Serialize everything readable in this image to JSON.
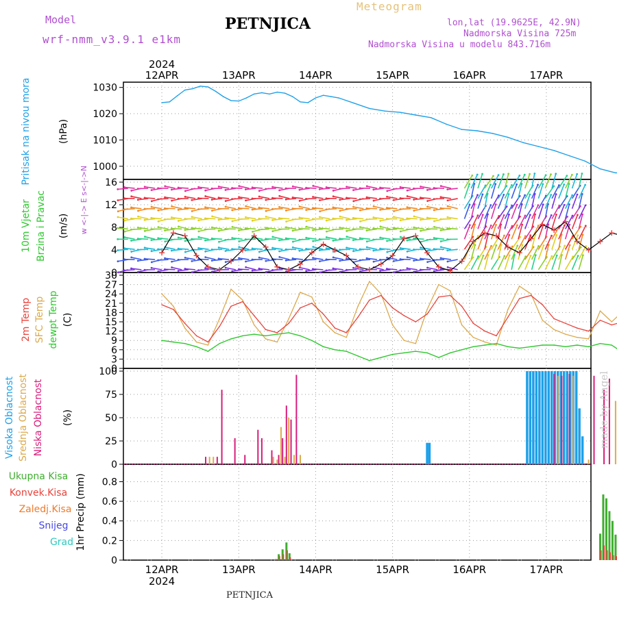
{
  "header": {
    "model_label": "Model",
    "model_name": "wrf-nmm_v3.9.1 e1km",
    "station": "PETNJICA",
    "product": "Meteogram",
    "lonlat": "lon,lat (19.9625E, 42.9N)",
    "altitude": "Nadmorska Visina 725m",
    "model_altitude": "Nadmorska Visina u modelu 843.716m"
  },
  "footer": {
    "station": "PETNJICA"
  },
  "watermark": "made by Angel",
  "colors": {
    "pressure": "#1fa0e8",
    "temp2m": "#e8423a",
    "sfc": "#dca94c",
    "dewpt": "#2ec82e",
    "high_cloud": "#1fa0e8",
    "mid_cloud": "#dca94c",
    "low_cloud": "#d81b7a",
    "precip_total": "#3fae2f",
    "precip_conv": "#e8423a",
    "precip_frozen": "#f07a2a",
    "snow": "#4848e0",
    "hail": "#2ec8c0",
    "wind_marker": "#e84040"
  },
  "chart_data": [
    {
      "id": "pressure",
      "type": "line",
      "ylabel": [
        "Pritisak na nivou mora",
        "(hPa)"
      ],
      "ylim": [
        995,
        1032
      ],
      "yticks": [
        1000,
        1010,
        1020,
        1030
      ],
      "x_days": [
        "12APR",
        "13APR",
        "14APR",
        "15APR",
        "16APR",
        "17APR"
      ],
      "year": "2024",
      "grid": true,
      "series": [
        {
          "x": [
            0,
            0.1,
            0.2,
            0.3,
            0.4,
            0.5,
            0.6,
            0.7,
            0.8,
            0.9,
            1.0,
            1.1,
            1.2,
            1.3,
            1.4,
            1.5,
            1.6,
            1.7,
            1.8,
            1.9,
            2.0,
            2.1,
            2.2,
            2.3,
            2.5,
            2.7,
            2.9,
            3.1,
            3.3,
            3.5,
            3.7,
            3.9,
            4.1,
            4.3,
            4.5,
            4.7,
            4.9,
            5.1,
            5.3,
            5.5,
            5.7,
            5.9,
            6.0
          ],
          "values": [
            1024.2,
            1024.5,
            1026.8,
            1029.0,
            1029.5,
            1030.5,
            1030.2,
            1028.5,
            1026.5,
            1025.0,
            1024.8,
            1026.0,
            1027.5,
            1028.0,
            1027.5,
            1028.2,
            1027.8,
            1026.5,
            1024.5,
            1024.2,
            1026.0,
            1027.0,
            1026.5,
            1026.0,
            1024.0,
            1022.0,
            1021.0,
            1020.5,
            1019.5,
            1018.5,
            1016.0,
            1014.0,
            1013.5,
            1012.5,
            1011.0,
            1009.0,
            1007.5,
            1006.0,
            1004.0,
            1002.0,
            999.0,
            997.5,
            997.5
          ]
        }
      ]
    },
    {
      "id": "wind",
      "type": "line",
      "ylabel": [
        "10m Vjetar",
        "Brzina i Pravac",
        "(m/s)"
      ],
      "direction_legend": "w <-|-> E  s<-|->N",
      "ylim": [
        0,
        16
      ],
      "yticks": [
        0,
        4,
        8,
        12,
        16
      ],
      "series": [
        {
          "name": "wind speed",
          "x": [
            0,
            0.15,
            0.3,
            0.45,
            0.6,
            0.75,
            0.9,
            1.05,
            1.2,
            1.35,
            1.5,
            1.65,
            1.8,
            1.95,
            2.1,
            2.25,
            2.4,
            2.55,
            2.7,
            2.85,
            3.0,
            3.15,
            3.3,
            3.45,
            3.6,
            3.75,
            3.9,
            4.05,
            4.2,
            4.35,
            4.5,
            4.65,
            4.8,
            4.95,
            5.1,
            5.25,
            5.4,
            5.55,
            5.7,
            5.85,
            6.0
          ],
          "values": [
            3.5,
            7.0,
            6.5,
            3.0,
            1.0,
            0.5,
            2.0,
            4.0,
            6.5,
            4.5,
            1.0,
            0.5,
            1.5,
            3.5,
            5.0,
            4.0,
            3.0,
            1.0,
            0.5,
            1.5,
            3.0,
            6.0,
            6.5,
            3.5,
            1.0,
            0.3,
            2.0,
            5.5,
            7.0,
            6.5,
            4.5,
            3.5,
            6.0,
            8.5,
            7.5,
            9.0,
            5.5,
            4.0,
            5.5,
            7.0,
            6.5
          ]
        }
      ]
    },
    {
      "id": "temperature",
      "type": "line",
      "ylabel": [
        "2m Temp",
        "SFC Temp",
        "dewpt Temp",
        "(C)"
      ],
      "ylim": [
        0,
        30
      ],
      "yticks": [
        0,
        3,
        6,
        9,
        12,
        15,
        18,
        21,
        24,
        27,
        30
      ],
      "series": [
        {
          "name": "2m Temp",
          "x": [
            0,
            0.15,
            0.3,
            0.45,
            0.6,
            0.75,
            0.9,
            1.05,
            1.2,
            1.35,
            1.5,
            1.65,
            1.8,
            1.95,
            2.1,
            2.25,
            2.4,
            2.55,
            2.7,
            2.85,
            3.0,
            3.15,
            3.3,
            3.45,
            3.6,
            3.75,
            3.9,
            4.05,
            4.2,
            4.35,
            4.5,
            4.65,
            4.8,
            4.95,
            5.1,
            5.25,
            5.4,
            5.55,
            5.7,
            5.85,
            6.0
          ],
          "values": [
            20.5,
            19.0,
            14.5,
            10.5,
            8.5,
            13.5,
            20.0,
            21.5,
            17.0,
            12.5,
            11.5,
            14.5,
            19.5,
            21.0,
            17.5,
            13.0,
            11.5,
            16.5,
            22.0,
            23.5,
            19.5,
            17.0,
            15.0,
            17.5,
            23.0,
            23.5,
            20.0,
            14.5,
            12.0,
            10.5,
            16.5,
            22.5,
            23.5,
            20.5,
            16.0,
            14.5,
            13.0,
            12.0,
            15.5,
            14.0,
            15.0
          ]
        },
        {
          "name": "SFC Temp",
          "x": [
            0,
            0.15,
            0.3,
            0.45,
            0.6,
            0.75,
            0.9,
            1.05,
            1.2,
            1.35,
            1.5,
            1.65,
            1.8,
            1.95,
            2.1,
            2.25,
            2.4,
            2.55,
            2.7,
            2.85,
            3.0,
            3.15,
            3.3,
            3.45,
            3.6,
            3.75,
            3.9,
            4.05,
            4.2,
            4.35,
            4.5,
            4.65,
            4.8,
            4.95,
            5.1,
            5.25,
            5.4,
            5.55,
            5.7,
            5.85,
            6.0
          ],
          "values": [
            24.0,
            20.0,
            13.0,
            8.5,
            7.5,
            16.0,
            25.5,
            22.0,
            14.0,
            9.5,
            8.5,
            16.0,
            24.5,
            23.0,
            15.0,
            11.5,
            10.0,
            20.0,
            28.0,
            24.0,
            14.0,
            9.0,
            8.0,
            19.0,
            27.0,
            25.0,
            14.0,
            10.0,
            8.5,
            7.5,
            19.0,
            26.5,
            24.0,
            15.5,
            12.5,
            11.0,
            10.0,
            9.5,
            18.5,
            15.0,
            18.5
          ]
        },
        {
          "name": "dewpt Temp",
          "x": [
            0,
            0.15,
            0.3,
            0.45,
            0.6,
            0.75,
            0.9,
            1.05,
            1.2,
            1.35,
            1.5,
            1.65,
            1.8,
            1.95,
            2.1,
            2.25,
            2.4,
            2.55,
            2.7,
            2.85,
            3.0,
            3.15,
            3.3,
            3.45,
            3.6,
            3.75,
            3.9,
            4.05,
            4.2,
            4.35,
            4.5,
            4.65,
            4.8,
            4.95,
            5.1,
            5.25,
            5.4,
            5.55,
            5.7,
            5.85,
            6.0
          ],
          "values": [
            9.0,
            8.5,
            8.0,
            7.0,
            5.5,
            8.0,
            9.5,
            10.5,
            11.0,
            10.5,
            11.0,
            11.5,
            10.5,
            9.0,
            7.0,
            6.0,
            5.5,
            4.0,
            2.5,
            3.5,
            4.5,
            5.0,
            5.5,
            5.0,
            3.5,
            5.0,
            6.0,
            7.0,
            7.5,
            8.0,
            7.0,
            6.5,
            7.0,
            7.5,
            7.5,
            7.0,
            7.5,
            7.0,
            8.0,
            7.5,
            5.0
          ]
        }
      ]
    },
    {
      "id": "clouds",
      "type": "bar",
      "ylabel": [
        "Visoka Oblacnost",
        "Srednja Oblacnost",
        "Niska Oblacnost",
        "(%)"
      ],
      "ylim": [
        0,
        100
      ],
      "yticks": [
        0,
        25,
        50,
        75,
        100
      ],
      "series": [
        {
          "name": "Visoka Oblacnost",
          "x": [
            3.45,
            3.48,
            4.75,
            4.79,
            4.83,
            4.87,
            4.91,
            4.95,
            4.99,
            5.03,
            5.07,
            5.11,
            5.15,
            5.19,
            5.23,
            5.27,
            5.31,
            5.35,
            5.39,
            5.43,
            5.47
          ],
          "values": [
            23,
            23,
            100,
            100,
            100,
            100,
            100,
            100,
            100,
            100,
            100,
            100,
            100,
            100,
            100,
            100,
            100,
            100,
            100,
            60,
            30
          ]
        },
        {
          "name": "Srednja Oblacnost",
          "x": [
            0.62,
            0.67,
            1.45,
            1.5,
            1.55,
            1.6,
            1.65,
            1.72,
            1.8,
            5.15,
            5.35,
            5.55,
            5.9
          ],
          "values": [
            8,
            8,
            8,
            5,
            40,
            8,
            50,
            10,
            10,
            95,
            95,
            5,
            68
          ]
        },
        {
          "name": "Niska Oblacnost",
          "x": [
            0.57,
            0.72,
            0.78,
            0.95,
            1.08,
            1.25,
            1.3,
            1.43,
            1.52,
            1.57,
            1.62,
            1.68,
            1.75,
            5.1,
            5.2,
            5.3,
            5.62,
            5.75,
            5.82
          ],
          "values": [
            8,
            8,
            80,
            28,
            10,
            37,
            28,
            15,
            10,
            28,
            63,
            48,
            96,
            97,
            95,
            97,
            95,
            80,
            92
          ]
        }
      ]
    },
    {
      "id": "precip",
      "type": "bar",
      "ylabel": [
        "1hr Precip (mm)"
      ],
      "legend": [
        "Ukupna Kisa",
        "Konvek.Kisa",
        "Zaledj.Kisa",
        "Snijeg",
        "Grad"
      ],
      "ylim": [
        0,
        0.95
      ],
      "yticks": [
        0,
        0.2,
        0.4,
        0.6,
        0.8
      ],
      "series": [
        {
          "name": "Ukupna Kisa",
          "x": [
            1.48,
            1.52,
            1.57,
            1.62,
            1.66,
            5.7,
            5.74,
            5.78,
            5.82,
            5.86,
            5.9
          ],
          "values": [
            0.01,
            0.06,
            0.11,
            0.18,
            0.07,
            0.27,
            0.67,
            0.63,
            0.5,
            0.4,
            0.26
          ]
        },
        {
          "name": "Konvek.Kisa",
          "x": [
            1.49,
            1.53,
            1.58,
            1.63,
            1.67,
            5.71,
            5.75,
            5.79,
            5.83,
            5.87,
            5.91
          ],
          "values": [
            0.01,
            0.04,
            0.06,
            0.1,
            0.03,
            0.1,
            0.15,
            0.1,
            0.08,
            0.05,
            0.04
          ]
        }
      ]
    }
  ]
}
